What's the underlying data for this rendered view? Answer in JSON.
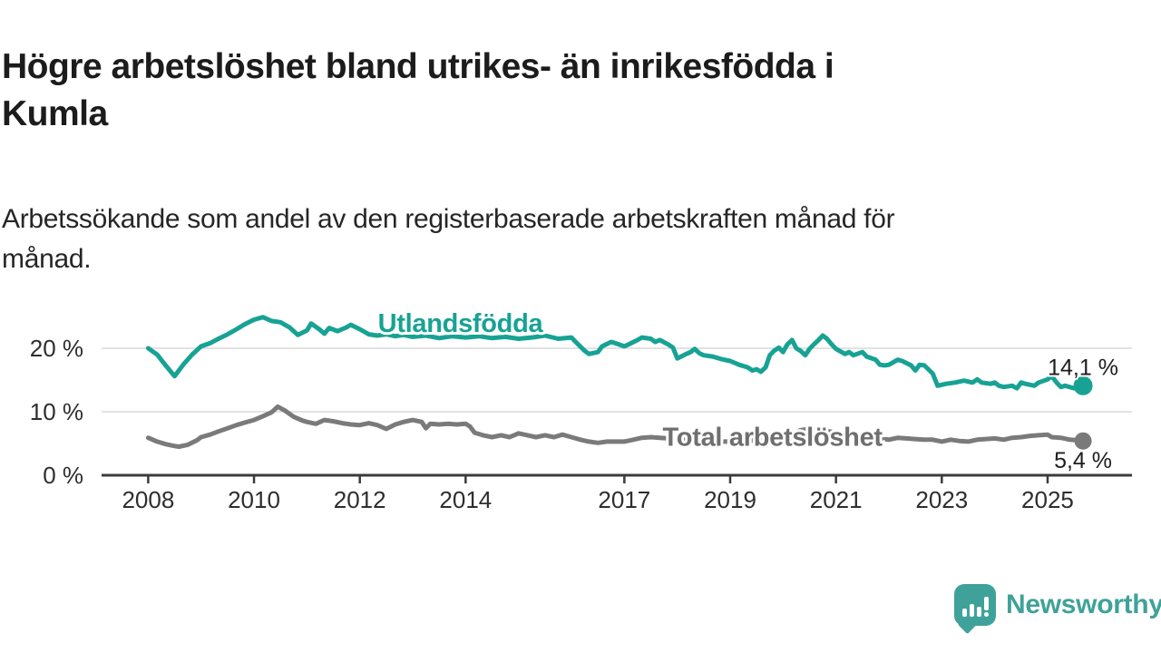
{
  "header": {
    "title": "Högre arbetslöshet bland utrikes- än inrikesfödda i\nKumla",
    "subtitle": "Arbetssökande som andel av den registerbaserade arbetskraften månad för\nmånad."
  },
  "footer": {
    "brand": "Newsworthy",
    "brand_color": "#3FA29A",
    "logo_icon": "bar-chart-speech-bubble-icon"
  },
  "chart_data": {
    "type": "line",
    "unit": "%",
    "grid": "horizontal-only",
    "legend": "inline-series-labels",
    "x_axis": {
      "range": [
        2007.1,
        2026.6
      ],
      "ticks": [
        2008,
        2010,
        2012,
        2014,
        2017,
        2019,
        2021,
        2023,
        2025
      ]
    },
    "y_axis": {
      "range": [
        0,
        27
      ],
      "ticks": [
        0,
        10,
        20
      ],
      "tick_labels": [
        "0 %",
        "10 %",
        "20 %"
      ],
      "gridlines": [
        10,
        20
      ]
    },
    "colors": {
      "axis": "#3b3b3b",
      "gridline": "#d9d9d9",
      "tick_text": "#2e2e2e",
      "end_label_text": "#1d1d1d"
    },
    "series": [
      {
        "id": "total-arbetsloshet",
        "name": "Total arbetslöshet",
        "color": "#7A7A7A",
        "label_color": "#6F6F6F",
        "end_value_label": "5,4 %",
        "end_label_offset": 30,
        "dot_radius": 9.5,
        "label_anchor": {
          "x": 2019.8,
          "y": 6.1
        },
        "points": [
          [
            2008.0,
            5.9
          ],
          [
            2008.17,
            5.3
          ],
          [
            2008.33,
            4.9
          ],
          [
            2008.5,
            4.6
          ],
          [
            2008.58,
            4.5
          ],
          [
            2008.75,
            4.8
          ],
          [
            2008.92,
            5.5
          ],
          [
            2009.0,
            6.0
          ],
          [
            2009.17,
            6.4
          ],
          [
            2009.33,
            6.9
          ],
          [
            2009.5,
            7.4
          ],
          [
            2009.67,
            7.9
          ],
          [
            2009.83,
            8.3
          ],
          [
            2010.0,
            8.7
          ],
          [
            2010.17,
            9.3
          ],
          [
            2010.33,
            9.9
          ],
          [
            2010.45,
            10.8
          ],
          [
            2010.58,
            10.2
          ],
          [
            2010.75,
            9.2
          ],
          [
            2010.92,
            8.6
          ],
          [
            2011.0,
            8.4
          ],
          [
            2011.17,
            8.1
          ],
          [
            2011.33,
            8.7
          ],
          [
            2011.5,
            8.5
          ],
          [
            2011.67,
            8.2
          ],
          [
            2011.83,
            8.0
          ],
          [
            2012.0,
            7.9
          ],
          [
            2012.17,
            8.2
          ],
          [
            2012.33,
            7.9
          ],
          [
            2012.5,
            7.3
          ],
          [
            2012.67,
            8.0
          ],
          [
            2012.83,
            8.4
          ],
          [
            2013.0,
            8.7
          ],
          [
            2013.17,
            8.4
          ],
          [
            2013.25,
            7.4
          ],
          [
            2013.33,
            8.1
          ],
          [
            2013.5,
            8.0
          ],
          [
            2013.67,
            8.1
          ],
          [
            2013.83,
            8.0
          ],
          [
            2014.0,
            8.1
          ],
          [
            2014.08,
            7.7
          ],
          [
            2014.17,
            6.7
          ],
          [
            2014.33,
            6.3
          ],
          [
            2014.5,
            6.0
          ],
          [
            2014.67,
            6.3
          ],
          [
            2014.83,
            6.0
          ],
          [
            2015.0,
            6.6
          ],
          [
            2015.17,
            6.3
          ],
          [
            2015.33,
            6.0
          ],
          [
            2015.5,
            6.3
          ],
          [
            2015.67,
            6.0
          ],
          [
            2015.83,
            6.4
          ],
          [
            2016.0,
            6.0
          ],
          [
            2016.17,
            5.6
          ],
          [
            2016.33,
            5.3
          ],
          [
            2016.5,
            5.1
          ],
          [
            2016.67,
            5.3
          ],
          [
            2016.83,
            5.3
          ],
          [
            2017.0,
            5.3
          ],
          [
            2017.17,
            5.6
          ],
          [
            2017.33,
            5.9
          ],
          [
            2017.5,
            6.0
          ],
          [
            2017.67,
            5.9
          ],
          [
            2017.83,
            5.8
          ],
          [
            2018.0,
            5.7
          ],
          [
            2018.25,
            5.5
          ],
          [
            2018.5,
            5.4
          ],
          [
            2018.75,
            5.3
          ],
          [
            2019.0,
            5.3
          ],
          [
            2019.25,
            5.4
          ],
          [
            2019.5,
            5.5
          ],
          [
            2019.75,
            5.6
          ],
          [
            2020.0,
            5.8
          ],
          [
            2020.17,
            6.4
          ],
          [
            2020.33,
            7.1
          ],
          [
            2020.5,
            7.3
          ],
          [
            2020.75,
            7.1
          ],
          [
            2021.0,
            6.7
          ],
          [
            2021.25,
            6.3
          ],
          [
            2021.5,
            6.0
          ],
          [
            2021.75,
            5.8
          ],
          [
            2022.0,
            5.6
          ],
          [
            2022.17,
            5.9
          ],
          [
            2022.33,
            5.8
          ],
          [
            2022.5,
            5.7
          ],
          [
            2022.67,
            5.6
          ],
          [
            2022.83,
            5.6
          ],
          [
            2023.0,
            5.3
          ],
          [
            2023.17,
            5.6
          ],
          [
            2023.33,
            5.4
          ],
          [
            2023.5,
            5.3
          ],
          [
            2023.67,
            5.6
          ],
          [
            2023.83,
            5.7
          ],
          [
            2024.0,
            5.8
          ],
          [
            2024.17,
            5.6
          ],
          [
            2024.33,
            5.9
          ],
          [
            2024.5,
            6.0
          ],
          [
            2024.67,
            6.2
          ],
          [
            2024.83,
            6.3
          ],
          [
            2025.0,
            6.4
          ],
          [
            2025.08,
            6.0
          ],
          [
            2025.25,
            5.9
          ],
          [
            2025.42,
            5.6
          ],
          [
            2025.58,
            5.5
          ],
          [
            2025.67,
            5.4
          ]
        ]
      },
      {
        "id": "utlandsfodda",
        "name": "Utlandsfödda",
        "color": "#17A294",
        "label_color": "#17A294",
        "end_value_label": "14,1 %",
        "end_label_offset": -12,
        "dot_radius": 10.5,
        "label_anchor": {
          "x": 2013.9,
          "y": 24.0
        },
        "points": [
          [
            2008.0,
            20.0
          ],
          [
            2008.17,
            19.0
          ],
          [
            2008.33,
            17.3
          ],
          [
            2008.5,
            15.6
          ],
          [
            2008.67,
            17.5
          ],
          [
            2008.83,
            19.0
          ],
          [
            2009.0,
            20.3
          ],
          [
            2009.17,
            20.8
          ],
          [
            2009.33,
            21.5
          ],
          [
            2009.5,
            22.2
          ],
          [
            2009.67,
            23.0
          ],
          [
            2009.83,
            23.8
          ],
          [
            2010.0,
            24.5
          ],
          [
            2010.17,
            24.9
          ],
          [
            2010.33,
            24.3
          ],
          [
            2010.5,
            24.1
          ],
          [
            2010.67,
            23.3
          ],
          [
            2010.83,
            22.1
          ],
          [
            2011.0,
            22.8
          ],
          [
            2011.08,
            23.9
          ],
          [
            2011.25,
            22.9
          ],
          [
            2011.33,
            22.3
          ],
          [
            2011.42,
            23.2
          ],
          [
            2011.58,
            22.7
          ],
          [
            2011.75,
            23.3
          ],
          [
            2011.83,
            23.7
          ],
          [
            2012.0,
            23.0
          ],
          [
            2012.17,
            22.2
          ],
          [
            2012.33,
            22.0
          ],
          [
            2012.5,
            22.2
          ],
          [
            2012.67,
            21.9
          ],
          [
            2012.83,
            22.1
          ],
          [
            2013.0,
            21.8
          ],
          [
            2013.25,
            22.0
          ],
          [
            2013.5,
            21.6
          ],
          [
            2013.75,
            21.9
          ],
          [
            2014.0,
            21.7
          ],
          [
            2014.25,
            21.9
          ],
          [
            2014.5,
            21.6
          ],
          [
            2014.75,
            21.8
          ],
          [
            2015.0,
            21.5
          ],
          [
            2015.25,
            21.7
          ],
          [
            2015.5,
            22.0
          ],
          [
            2015.75,
            21.5
          ],
          [
            2016.0,
            21.7
          ],
          [
            2016.08,
            21.0
          ],
          [
            2016.25,
            19.6
          ],
          [
            2016.33,
            19.1
          ],
          [
            2016.5,
            19.4
          ],
          [
            2016.58,
            20.3
          ],
          [
            2016.75,
            21.0
          ],
          [
            2016.83,
            20.8
          ],
          [
            2017.0,
            20.3
          ],
          [
            2017.08,
            20.6
          ],
          [
            2017.25,
            21.3
          ],
          [
            2017.33,
            21.7
          ],
          [
            2017.5,
            21.5
          ],
          [
            2017.58,
            21.0
          ],
          [
            2017.67,
            21.3
          ],
          [
            2017.83,
            20.6
          ],
          [
            2017.92,
            20.1
          ],
          [
            2018.0,
            18.4
          ],
          [
            2018.17,
            19.1
          ],
          [
            2018.25,
            19.4
          ],
          [
            2018.33,
            19.9
          ],
          [
            2018.42,
            19.2
          ],
          [
            2018.5,
            18.9
          ],
          [
            2018.67,
            18.7
          ],
          [
            2018.83,
            18.3
          ],
          [
            2019.0,
            18.0
          ],
          [
            2019.17,
            17.4
          ],
          [
            2019.33,
            17.0
          ],
          [
            2019.42,
            16.5
          ],
          [
            2019.5,
            16.7
          ],
          [
            2019.58,
            16.3
          ],
          [
            2019.67,
            17.0
          ],
          [
            2019.75,
            18.9
          ],
          [
            2019.83,
            19.6
          ],
          [
            2019.92,
            20.1
          ],
          [
            2020.0,
            19.4
          ],
          [
            2020.08,
            20.6
          ],
          [
            2020.17,
            21.3
          ],
          [
            2020.25,
            20.0
          ],
          [
            2020.33,
            19.6
          ],
          [
            2020.42,
            18.9
          ],
          [
            2020.5,
            19.9
          ],
          [
            2020.58,
            20.6
          ],
          [
            2020.67,
            21.3
          ],
          [
            2020.75,
            22.0
          ],
          [
            2020.83,
            21.5
          ],
          [
            2020.92,
            20.6
          ],
          [
            2021.0,
            19.9
          ],
          [
            2021.17,
            19.1
          ],
          [
            2021.25,
            19.4
          ],
          [
            2021.33,
            18.9
          ],
          [
            2021.5,
            19.4
          ],
          [
            2021.58,
            18.7
          ],
          [
            2021.75,
            18.2
          ],
          [
            2021.83,
            17.4
          ],
          [
            2021.92,
            17.3
          ],
          [
            2022.0,
            17.4
          ],
          [
            2022.17,
            18.2
          ],
          [
            2022.25,
            18.0
          ],
          [
            2022.42,
            17.3
          ],
          [
            2022.5,
            16.5
          ],
          [
            2022.58,
            17.4
          ],
          [
            2022.67,
            17.3
          ],
          [
            2022.83,
            16.0
          ],
          [
            2022.92,
            14.1
          ],
          [
            2023.08,
            14.4
          ],
          [
            2023.25,
            14.6
          ],
          [
            2023.42,
            14.9
          ],
          [
            2023.58,
            14.6
          ],
          [
            2023.67,
            15.1
          ],
          [
            2023.75,
            14.6
          ],
          [
            2023.92,
            14.4
          ],
          [
            2024.0,
            14.6
          ],
          [
            2024.08,
            14.1
          ],
          [
            2024.17,
            13.9
          ],
          [
            2024.33,
            14.1
          ],
          [
            2024.42,
            13.7
          ],
          [
            2024.5,
            14.6
          ],
          [
            2024.58,
            14.4
          ],
          [
            2024.75,
            14.1
          ],
          [
            2024.83,
            14.6
          ],
          [
            2025.0,
            15.1
          ],
          [
            2025.08,
            15.6
          ],
          [
            2025.17,
            14.6
          ],
          [
            2025.25,
            13.9
          ],
          [
            2025.33,
            14.1
          ],
          [
            2025.5,
            13.7
          ],
          [
            2025.58,
            13.9
          ],
          [
            2025.67,
            14.1
          ]
        ]
      }
    ]
  }
}
